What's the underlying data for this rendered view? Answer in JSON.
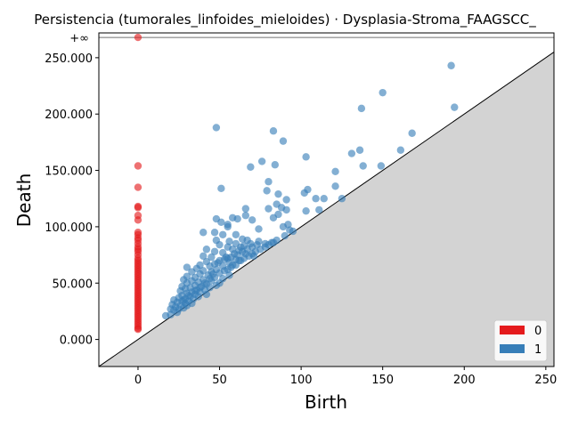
{
  "chart_data": {
    "type": "scatter",
    "title": "Persistencia (tumorales_linfoides_mieloides) · Dysplasia-Stroma_FAAGSCC_",
    "xlabel": "Birth",
    "ylabel": "Death",
    "xlim": [
      -24,
      255
    ],
    "ylim": [
      -24000,
      272000
    ],
    "x_ticks": [
      0,
      50,
      100,
      150,
      200,
      250
    ],
    "y_ticks": [
      0,
      50000,
      100000,
      150000,
      200000,
      250000
    ],
    "y_tick_labels": [
      "0.000",
      "50.000",
      "100.000",
      "150.000",
      "200.000",
      "250.000"
    ],
    "infinity_label": "+∞",
    "infinity_value": 268000,
    "grid": false,
    "legend_position": "bottom-right",
    "diagonal": true,
    "colors": {
      "h0": "#e41a1c",
      "h1": "#377eb8",
      "diagonal_fill": "#d3d3d3",
      "infinity_line": "#707070"
    },
    "series": [
      {
        "name": "0",
        "points": [
          [
            0,
            268000
          ],
          [
            0,
            154000
          ],
          [
            0,
            135000
          ],
          [
            0,
            118000
          ],
          [
            0,
            117000
          ],
          [
            0,
            110000
          ],
          [
            0,
            106000
          ],
          [
            0,
            95000
          ],
          [
            0,
            93000
          ],
          [
            0,
            90000
          ],
          [
            0,
            88000
          ],
          [
            0,
            85000
          ],
          [
            0,
            82000
          ],
          [
            0,
            80000
          ],
          [
            0,
            78000
          ],
          [
            0,
            75000
          ],
          [
            0,
            72000
          ],
          [
            0,
            70000
          ],
          [
            0,
            68000
          ],
          [
            0,
            66000
          ],
          [
            0,
            64000
          ],
          [
            0,
            62000
          ],
          [
            0,
            60000
          ],
          [
            0,
            58000
          ],
          [
            0,
            56000
          ],
          [
            0,
            54000
          ],
          [
            0,
            52000
          ],
          [
            0,
            50000
          ],
          [
            0,
            48000
          ],
          [
            0,
            46000
          ],
          [
            0,
            44000
          ],
          [
            0,
            42000
          ],
          [
            0,
            40000
          ],
          [
            0,
            38000
          ],
          [
            0,
            36000
          ],
          [
            0,
            34000
          ],
          [
            0,
            32000
          ],
          [
            0,
            30000
          ],
          [
            0,
            28000
          ],
          [
            0,
            26000
          ],
          [
            0,
            24000
          ],
          [
            0,
            22000
          ],
          [
            0,
            20000
          ],
          [
            0,
            18000
          ],
          [
            0,
            16000
          ],
          [
            0,
            14000
          ],
          [
            0,
            12000
          ],
          [
            0,
            10000
          ],
          [
            0,
            9000
          ]
        ]
      },
      {
        "name": "1",
        "points": [
          [
            192,
            243000
          ],
          [
            150,
            219000
          ],
          [
            137,
            205000
          ],
          [
            194,
            206000
          ],
          [
            48,
            188000
          ],
          [
            83,
            185000
          ],
          [
            168,
            183000
          ],
          [
            89,
            176000
          ],
          [
            136,
            168000
          ],
          [
            161,
            168000
          ],
          [
            131,
            165000
          ],
          [
            103,
            162000
          ],
          [
            76,
            158000
          ],
          [
            69,
            153000
          ],
          [
            84,
            155000
          ],
          [
            138,
            154000
          ],
          [
            149,
            154000
          ],
          [
            121,
            149000
          ],
          [
            80,
            140000
          ],
          [
            51,
            134000
          ],
          [
            121,
            136000
          ],
          [
            104,
            133000
          ],
          [
            79,
            132000
          ],
          [
            102,
            130000
          ],
          [
            86,
            129000
          ],
          [
            109,
            125000
          ],
          [
            114,
            125000
          ],
          [
            125,
            125000
          ],
          [
            91,
            124000
          ],
          [
            85,
            120000
          ],
          [
            88,
            117000
          ],
          [
            66,
            116000
          ],
          [
            80,
            116000
          ],
          [
            91,
            115000
          ],
          [
            111,
            115000
          ],
          [
            103,
            114000
          ],
          [
            86,
            111000
          ],
          [
            66,
            110000
          ],
          [
            83,
            108000
          ],
          [
            58,
            108000
          ],
          [
            61,
            107000
          ],
          [
            48,
            107000
          ],
          [
            70,
            106000
          ],
          [
            51,
            104000
          ],
          [
            55,
            102000
          ],
          [
            55,
            100000
          ],
          [
            89,
            100000
          ],
          [
            92,
            102000
          ],
          [
            74,
            98000
          ],
          [
            93,
            97000
          ],
          [
            40,
            95000
          ],
          [
            47,
            95000
          ],
          [
            60,
            93000
          ],
          [
            52,
            93000
          ],
          [
            64,
            89000
          ],
          [
            48,
            88000
          ],
          [
            67,
            88000
          ],
          [
            56,
            87000
          ],
          [
            83,
            86000
          ],
          [
            78,
            85000
          ],
          [
            73,
            84000
          ],
          [
            60,
            85000
          ],
          [
            50,
            84000
          ],
          [
            65,
            83000
          ],
          [
            70,
            82000
          ],
          [
            55,
            82000
          ],
          [
            42,
            80000
          ],
          [
            58,
            80000
          ],
          [
            62,
            79000
          ],
          [
            47,
            78000
          ],
          [
            52,
            77000
          ],
          [
            66,
            76000
          ],
          [
            71,
            74000
          ],
          [
            40,
            74000
          ],
          [
            45,
            73000
          ],
          [
            55,
            72000
          ],
          [
            60,
            71000
          ],
          [
            50,
            70000
          ],
          [
            63,
            70000
          ],
          [
            42,
            69000
          ],
          [
            47,
            67000
          ],
          [
            56,
            68000
          ],
          [
            38,
            66000
          ],
          [
            60,
            66000
          ],
          [
            44,
            65000
          ],
          [
            52,
            65000
          ],
          [
            30,
            64000
          ],
          [
            36,
            63000
          ],
          [
            48,
            62000
          ],
          [
            55,
            62000
          ],
          [
            40,
            61000
          ],
          [
            45,
            60000
          ],
          [
            33,
            60000
          ],
          [
            50,
            59000
          ],
          [
            38,
            58000
          ],
          [
            43,
            57000
          ],
          [
            56,
            57000
          ],
          [
            30,
            56000
          ],
          [
            35,
            55000
          ],
          [
            47,
            55000
          ],
          [
            52,
            54000
          ],
          [
            28,
            53000
          ],
          [
            40,
            53000
          ],
          [
            33,
            52000
          ],
          [
            45,
            52000
          ],
          [
            37,
            51000
          ],
          [
            50,
            50000
          ],
          [
            30,
            50000
          ],
          [
            42,
            49000
          ],
          [
            35,
            48000
          ],
          [
            48,
            48000
          ],
          [
            27,
            47000
          ],
          [
            39,
            47000
          ],
          [
            32,
            46000
          ],
          [
            44,
            46000
          ],
          [
            29,
            45000
          ],
          [
            36,
            44000
          ],
          [
            41,
            44000
          ],
          [
            26,
            43000
          ],
          [
            33,
            42000
          ],
          [
            38,
            42000
          ],
          [
            30,
            41000
          ],
          [
            35,
            40000
          ],
          [
            42,
            40000
          ],
          [
            27,
            39000
          ],
          [
            32,
            38000
          ],
          [
            37,
            38000
          ],
          [
            25,
            37000
          ],
          [
            29,
            36000
          ],
          [
            34,
            36000
          ],
          [
            22,
            35000
          ],
          [
            27,
            34000
          ],
          [
            31,
            34000
          ],
          [
            24,
            33000
          ],
          [
            29,
            32000
          ],
          [
            33,
            32000
          ],
          [
            21,
            31000
          ],
          [
            26,
            30000
          ],
          [
            30,
            30000
          ],
          [
            23,
            29000
          ],
          [
            28,
            28000
          ],
          [
            20,
            27000
          ],
          [
            25,
            27000
          ],
          [
            22,
            26000
          ],
          [
            17,
            21000
          ],
          [
            20,
            22000
          ],
          [
            24,
            24000
          ],
          [
            58,
            66000
          ],
          [
            62,
            70000
          ],
          [
            65,
            72000
          ],
          [
            70,
            76000
          ],
          [
            75,
            80000
          ],
          [
            80,
            84000
          ],
          [
            85,
            88000
          ],
          [
            90,
            92000
          ],
          [
            95,
            96000
          ],
          [
            53,
            61000
          ],
          [
            57,
            64000
          ],
          [
            68,
            74000
          ],
          [
            72,
            78000
          ],
          [
            78,
            82000
          ],
          [
            82,
            86000
          ],
          [
            46,
            58000
          ],
          [
            44,
            54000
          ],
          [
            41,
            50000
          ],
          [
            38,
            46000
          ],
          [
            35,
            43000
          ],
          [
            31,
            39000
          ],
          [
            28,
            35000
          ],
          [
            61,
            75000
          ],
          [
            64,
            78000
          ],
          [
            54,
            73000
          ],
          [
            59,
            76000
          ],
          [
            49,
            68000
          ],
          [
            53,
            71000
          ],
          [
            57,
            73000
          ],
          [
            67,
            80000
          ],
          [
            63,
            82000
          ],
          [
            69,
            85000
          ],
          [
            74,
            87000
          ]
        ]
      }
    ]
  }
}
